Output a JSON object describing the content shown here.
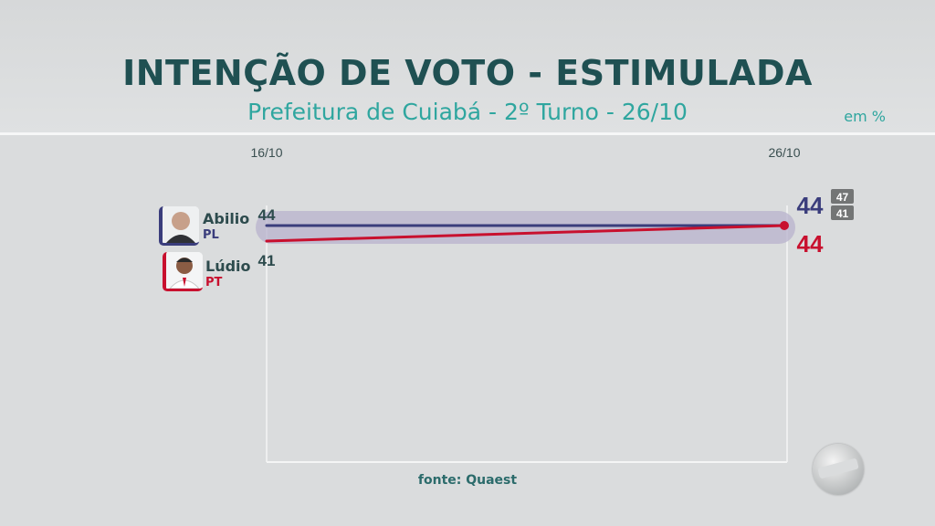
{
  "header": {
    "title": "INTENÇÃO DE VOTO - ESTIMULADA",
    "subtitle": "Prefeitura de Cuiabá - 2º Turno - 26/10",
    "unit": "em %"
  },
  "candidates": [
    {
      "name": "Abilio",
      "party": "PL",
      "color": "#3a3d7c"
    },
    {
      "name": "Lúdio",
      "party": "PT",
      "color": "#c8102e"
    }
  ],
  "margin_of_error_range": {
    "upper": "47",
    "lower": "41"
  },
  "source": "fonte: Quaest",
  "chart_data": {
    "type": "line",
    "title": "INTENÇÃO DE VOTO - ESTIMULADA",
    "subtitle": "Prefeitura de Cuiabá - 2º Turno - 26/10",
    "unit": "em %",
    "x": [
      "16/10",
      "26/10"
    ],
    "series": [
      {
        "name": "Abilio (PL)",
        "values": [
          44,
          44
        ],
        "labels": [
          "44",
          "44"
        ],
        "color": "#3a3d7c"
      },
      {
        "name": "Lúdio (PT)",
        "values": [
          41,
          44
        ],
        "labels": [
          "41",
          "44"
        ],
        "color": "#c8102e"
      }
    ],
    "band": {
      "from": 41,
      "to": 47,
      "labels": [
        "47",
        "41"
      ]
    }
  }
}
